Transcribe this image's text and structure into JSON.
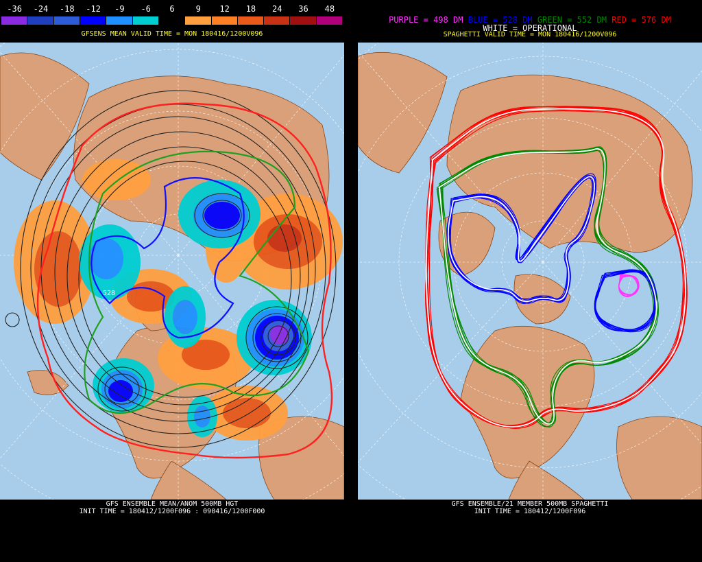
{
  "left_panel": {
    "colorbar": {
      "labels": [
        "-36",
        "-24",
        "-18",
        "-12",
        "-9",
        "-6",
        "6",
        "9",
        "12",
        "18",
        "24",
        "36",
        "48"
      ],
      "colors": [
        "#8a2be2",
        "#1f3fbf",
        "#2e5bd8",
        "#0000ff",
        "#1e90ff",
        "#00ced1",
        "#000000",
        "#ff9f40",
        "#ff7f24",
        "#e8591a",
        "#c83214",
        "#a01010",
        "#b0007a"
      ]
    },
    "subtitle": "GFSENS MEAN VALID TIME = MON 180416/1200V096",
    "contour_label": "528",
    "footer_line1": "GFS ENSEMBLE MEAN/ANOM 500MB HGT",
    "footer_line2": "INIT TIME = 180412/1200F096 : 090416/1200F000"
  },
  "right_panel": {
    "legend": {
      "purple": "PURPLE = 498 DM",
      "blue": "BLUE = 528 DM",
      "green": "GREEN = 552 DM",
      "red": "RED = 576 DM",
      "white": "WHITE = OPERATIONAL"
    },
    "colors": {
      "purple": "#ff33ff",
      "blue": "#0000ff",
      "green": "#008800",
      "red": "#ff0000",
      "white": "#ffffff"
    },
    "subtitle": "SPAGHETTI VALID TIME = MON 180416/1200V096",
    "footer_line1": "GFS ENSEMBLE/21 MEMBER 500MB SPAGHETTI",
    "footer_line2": "INIT TIME = 180412/1200F096"
  },
  "map_colors": {
    "ocean": "#a8cdea",
    "land": "#d9a07a",
    "border": "#8b4513",
    "grid": "#ffffff"
  }
}
